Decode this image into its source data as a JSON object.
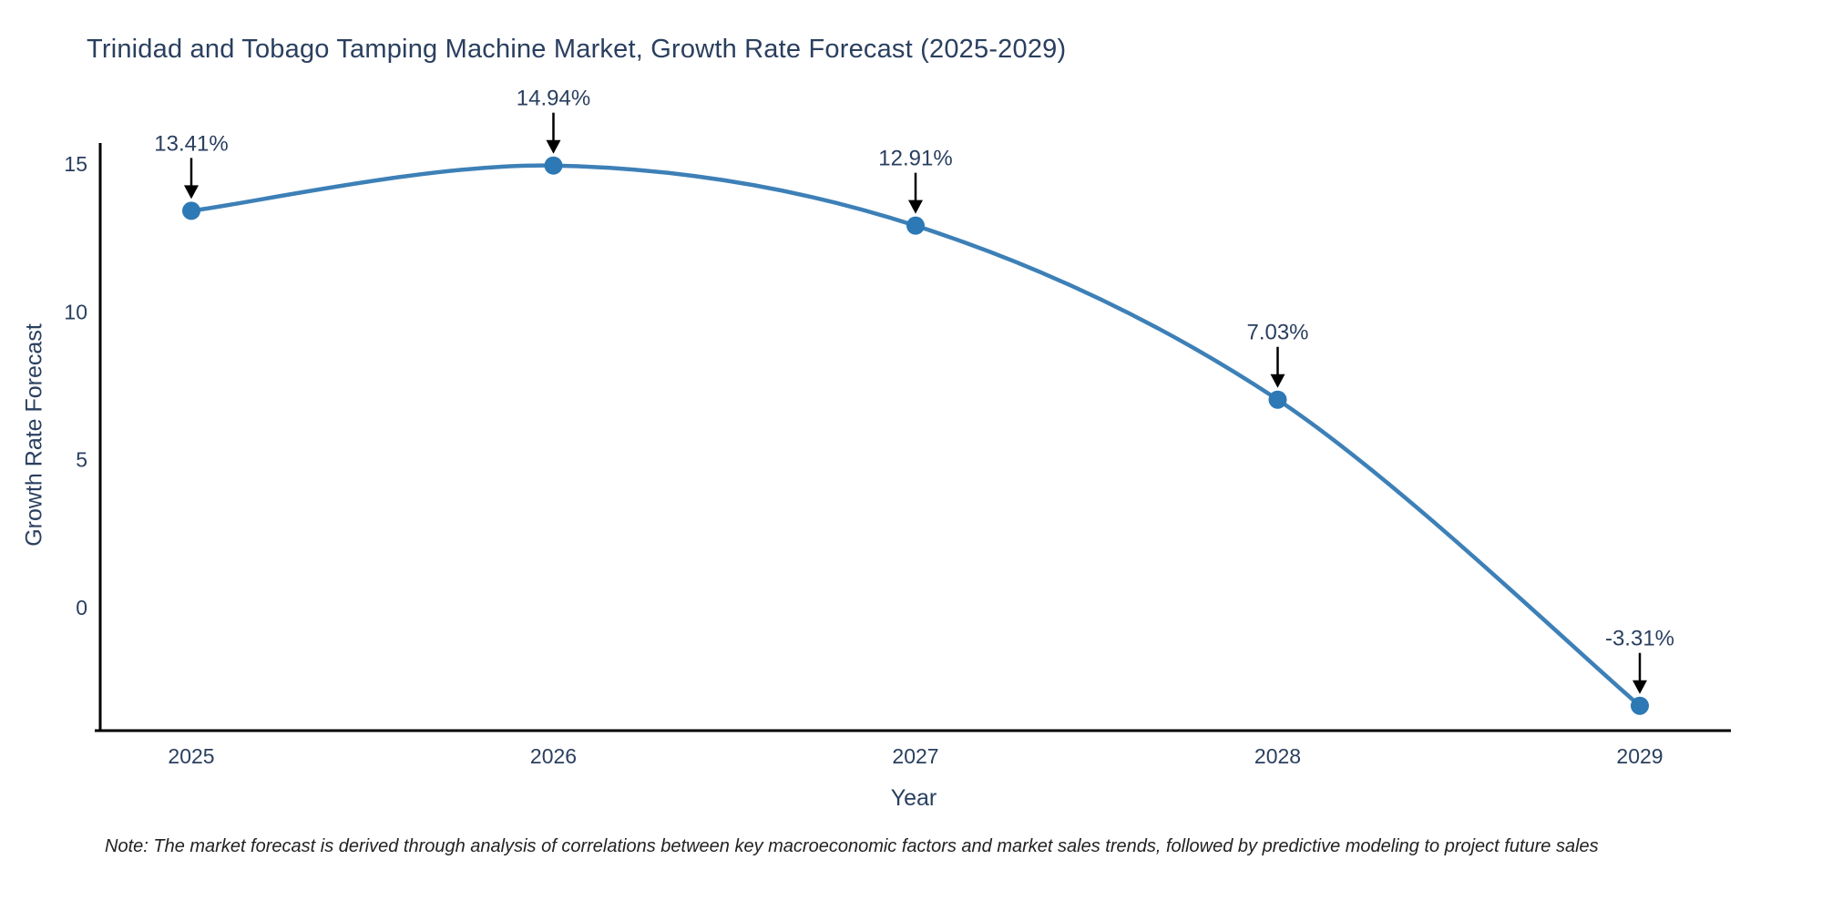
{
  "page": {
    "background": "#ffffff"
  },
  "note": "Note: The market forecast is derived through analysis of correlations between key macroeconomic factors and market sales trends, followed by predictive modeling to project future sales",
  "chart_data": {
    "type": "line",
    "title": "Trinidad and Tobago Tamping Machine Market, Growth Rate Forecast (2025-2029)",
    "xlabel": "Year",
    "ylabel": "Growth Rate Forecast",
    "categories": [
      "2025",
      "2026",
      "2027",
      "2028",
      "2029"
    ],
    "values": [
      13.41,
      14.94,
      12.91,
      7.03,
      -3.31
    ],
    "point_labels": [
      "13.41%",
      "14.94%",
      "12.91%",
      "7.03%",
      "-3.31%"
    ],
    "yticks": [
      15,
      10,
      5,
      0
    ],
    "ylim": [
      -4.15,
      15.7
    ],
    "grid": false,
    "legend_position": "none",
    "line_shape": "spline",
    "annotation_style": "value-above-with-down-arrow",
    "colors": {
      "line": "#3d80b7",
      "marker": "#2c79b6",
      "text": "#2a3f5f",
      "axis": "#000000",
      "annotation_text": "#2a3f5f",
      "annotation_arrow": "#000000",
      "note_text": "#222222"
    }
  }
}
